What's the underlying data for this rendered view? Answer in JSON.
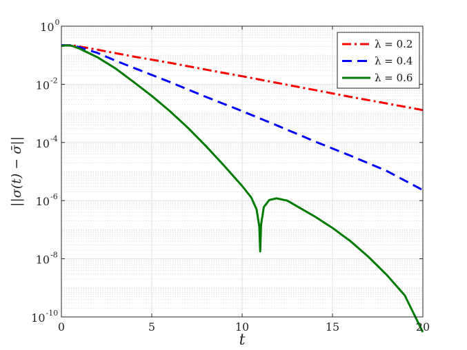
{
  "chart_data": {
    "type": "line",
    "xlabel": "t",
    "ylabel": "||σ(t) − σ̄||",
    "xscale": "linear",
    "yscale": "log",
    "xlim": [
      0,
      20
    ],
    "ylim": [
      1e-10,
      1
    ],
    "xticks": [
      0,
      5,
      10,
      15,
      20
    ],
    "yticks": [
      {
        "value": 1,
        "base": "10",
        "exp": "0"
      },
      {
        "value": 0.01,
        "base": "10",
        "exp": "-2"
      },
      {
        "value": 0.0001,
        "base": "10",
        "exp": "-4"
      },
      {
        "value": 1e-06,
        "base": "10",
        "exp": "-6"
      },
      {
        "value": 1e-08,
        "base": "10",
        "exp": "-8"
      },
      {
        "value": 1e-10,
        "base": "10",
        "exp": "-10"
      }
    ],
    "grid": true,
    "minor_grid": true,
    "legend_position": "top-right",
    "series": [
      {
        "name": "λ = 0.2",
        "color": "#ff0000",
        "dash": "dashdot",
        "x": [
          0,
          0.5,
          1,
          2,
          4,
          6,
          8,
          10,
          12,
          14,
          16,
          18,
          20
        ],
        "y": [
          0.22,
          0.22,
          0.2,
          0.155,
          0.09,
          0.055,
          0.032,
          0.019,
          0.011,
          0.0064,
          0.0037,
          0.0022,
          0.0013
        ]
      },
      {
        "name": "λ = 0.4",
        "color": "#0000ff",
        "dash": "dashed",
        "x": [
          0,
          0.5,
          1,
          2,
          3,
          4,
          6,
          8,
          10,
          12,
          14,
          16,
          18,
          20
        ],
        "y": [
          0.22,
          0.22,
          0.19,
          0.12,
          0.065,
          0.037,
          0.012,
          0.0037,
          0.0012,
          0.00037,
          0.00011,
          3.5e-05,
          1.05e-05,
          2.3e-06
        ]
      },
      {
        "name": "λ = 0.6",
        "color": "#007a00",
        "dash": "solid",
        "x": [
          0,
          0.3,
          0.6,
          1,
          1.5,
          2,
          3,
          4,
          5,
          6,
          7,
          8,
          9,
          10,
          10.5,
          10.8,
          10.95,
          11,
          11.05,
          11.2,
          11.5,
          11.9,
          12.5,
          13,
          14,
          15,
          16,
          17,
          18,
          19,
          20
        ],
        "y": [
          0.21,
          0.22,
          0.21,
          0.17,
          0.12,
          0.085,
          0.035,
          0.012,
          0.004,
          0.0012,
          0.00032,
          7.5e-05,
          1.6e-05,
          3.2e-06,
          1.3e-06,
          5e-07,
          1.3e-07,
          1.8e-08,
          1.5e-07,
          6e-07,
          1.05e-06,
          1.2e-06,
          1e-06,
          6.6e-07,
          2.9e-07,
          1.15e-07,
          4e-08,
          1.15e-08,
          2.8e-09,
          5.5e-10,
          3e-11
        ]
      }
    ]
  }
}
